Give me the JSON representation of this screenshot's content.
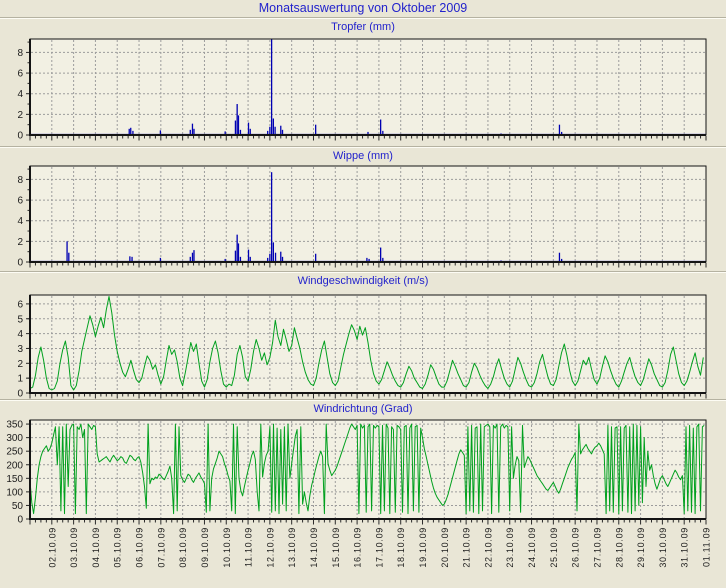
{
  "page": {
    "title": "Monatsauswertung von Oktober 2009"
  },
  "colors": {
    "background": "#e9e6d6",
    "plot_background": "#f2f0e3",
    "grid": "#9c9c9c",
    "frame": "#141414",
    "tick": "#2a2a2a",
    "title_text": "#2222cc",
    "rain_series": "#0000b2",
    "wind_series": "#00a01e"
  },
  "x_axis": {
    "start_day": "01.10.09",
    "days": 31,
    "minor_tick_hours": 6,
    "labels": [
      "02.10.09",
      "03.10.09",
      "04.10.09",
      "05.10.09",
      "06.10.09",
      "07.10.09",
      "08.10.09",
      "09.10.09",
      "10.10.09",
      "11.10.09",
      "12.10.09",
      "13.10.09",
      "14.10.09",
      "15.10.09",
      "16.10.09",
      "17.10.09",
      "18.10.09",
      "19.10.09",
      "20.10.09",
      "21.10.09",
      "22.10.09",
      "23.10.09",
      "24.10.09",
      "25.10.09",
      "26.10.09",
      "27.10.09",
      "28.10.09",
      "29.10.09",
      "30.10.09",
      "31.10.09",
      "01.11.09"
    ]
  },
  "chart_data": [
    {
      "type": "bar",
      "mark": "impulse",
      "title": "Tropfer (mm)",
      "ylabel": "mm",
      "color": "#0000b2",
      "ymax": 9.3,
      "yticks": [
        0,
        2,
        4,
        6,
        8
      ],
      "x_unit": "days_since_01_10_09",
      "points": [
        [
          4.55,
          0.6
        ],
        [
          4.62,
          0.7
        ],
        [
          4.72,
          0.4
        ],
        [
          5.98,
          0.45
        ],
        [
          7.35,
          0.5
        ],
        [
          7.45,
          1.1
        ],
        [
          7.52,
          0.6
        ],
        [
          8.95,
          0.35
        ],
        [
          9.42,
          1.4
        ],
        [
          9.5,
          3.0
        ],
        [
          9.56,
          1.9
        ],
        [
          9.65,
          0.5
        ],
        [
          10.02,
          1.2
        ],
        [
          10.1,
          0.6
        ],
        [
          10.9,
          0.4
        ],
        [
          11.0,
          0.8
        ],
        [
          11.08,
          9.4
        ],
        [
          11.16,
          1.6
        ],
        [
          11.24,
          0.8
        ],
        [
          11.5,
          0.9
        ],
        [
          11.58,
          0.5
        ],
        [
          13.1,
          1.0
        ],
        [
          15.5,
          0.3
        ],
        [
          16.08,
          1.5
        ],
        [
          16.18,
          0.4
        ],
        [
          21.6,
          0.15
        ],
        [
          24.28,
          1.0
        ],
        [
          24.38,
          0.3
        ]
      ]
    },
    {
      "type": "bar",
      "mark": "impulse",
      "title": "Wippe (mm)",
      "ylabel": "mm",
      "color": "#0000b2",
      "ymax": 9.3,
      "yticks": [
        0,
        2,
        4,
        6,
        8
      ],
      "x_unit": "days_since_01_10_09",
      "points": [
        [
          1.7,
          2.0
        ],
        [
          1.78,
          0.9
        ],
        [
          4.58,
          0.55
        ],
        [
          4.68,
          0.5
        ],
        [
          5.98,
          0.4
        ],
        [
          7.35,
          0.5
        ],
        [
          7.45,
          0.9
        ],
        [
          7.52,
          1.15
        ],
        [
          8.95,
          0.3
        ],
        [
          9.42,
          1.1
        ],
        [
          9.5,
          2.65
        ],
        [
          9.56,
          1.8
        ],
        [
          9.65,
          0.5
        ],
        [
          10.02,
          1.2
        ],
        [
          10.1,
          0.5
        ],
        [
          10.9,
          0.4
        ],
        [
          11.0,
          0.8
        ],
        [
          11.08,
          8.7
        ],
        [
          11.16,
          1.9
        ],
        [
          11.26,
          0.9
        ],
        [
          11.5,
          1.0
        ],
        [
          11.58,
          0.5
        ],
        [
          13.1,
          0.8
        ],
        [
          15.45,
          0.4
        ],
        [
          15.55,
          0.3
        ],
        [
          16.08,
          1.4
        ],
        [
          16.18,
          0.4
        ],
        [
          21.6,
          0.15
        ],
        [
          24.28,
          0.9
        ],
        [
          24.38,
          0.3
        ]
      ]
    },
    {
      "type": "line",
      "title": "Windgeschwindigkeit (m/s)",
      "ylabel": "m/s",
      "color": "#00a01e",
      "ymax": 6.6,
      "yticks": [
        0,
        1,
        2,
        3,
        4,
        5,
        6
      ],
      "samples_per_day": 8,
      "values": [
        0.3,
        0.4,
        1.2,
        2.4,
        3.1,
        2.2,
        1.0,
        0.3,
        0.2,
        0.3,
        0.8,
        2.0,
        2.9,
        3.5,
        2.4,
        0.5,
        0.2,
        0.5,
        1.5,
        2.8,
        3.6,
        4.4,
        5.2,
        4.6,
        3.8,
        4.5,
        5.1,
        4.4,
        5.6,
        6.5,
        5.4,
        3.9,
        2.8,
        2.0,
        1.4,
        1.1,
        1.6,
        2.2,
        1.5,
        0.9,
        0.7,
        1.0,
        1.8,
        2.5,
        2.2,
        1.6,
        1.9,
        1.2,
        0.6,
        1.1,
        2.2,
        3.2,
        2.6,
        2.9,
        2.1,
        1.0,
        0.5,
        1.4,
        2.4,
        3.4,
        2.8,
        3.3,
        2.0,
        0.8,
        0.4,
        0.9,
        2.1,
        3.0,
        3.5,
        2.7,
        1.5,
        0.6,
        0.4,
        0.6,
        0.5,
        1.2,
        2.6,
        3.2,
        2.4,
        1.1,
        0.8,
        1.6,
        2.8,
        3.6,
        3.0,
        2.2,
        2.7,
        1.9,
        2.4,
        3.4,
        4.9,
        3.8,
        3.2,
        4.3,
        3.6,
        2.8,
        3.2,
        4.4,
        3.7,
        3.0,
        2.1,
        1.4,
        0.9,
        0.6,
        0.5,
        1.0,
        2.0,
        2.9,
        3.5,
        2.4,
        1.3,
        0.7,
        0.5,
        0.8,
        1.7,
        2.6,
        3.3,
        4.0,
        4.6,
        4.2,
        3.6,
        4.5,
        3.9,
        4.4,
        3.4,
        2.2,
        1.3,
        0.8,
        0.6,
        0.9,
        1.5,
        2.1,
        1.7,
        1.2,
        0.8,
        0.5,
        0.4,
        0.7,
        1.3,
        1.8,
        1.5,
        1.0,
        0.7,
        0.4,
        0.3,
        0.6,
        1.2,
        1.9,
        1.6,
        1.1,
        0.6,
        0.4,
        0.4,
        0.8,
        1.5,
        2.2,
        1.8,
        1.3,
        0.9,
        0.5,
        0.4,
        0.7,
        1.4,
        2.0,
        1.7,
        1.2,
        0.8,
        0.5,
        0.3,
        0.6,
        1.1,
        1.8,
        2.3,
        1.6,
        1.0,
        0.6,
        0.4,
        0.8,
        1.6,
        2.4,
        2.0,
        1.4,
        0.9,
        0.5,
        0.4,
        0.7,
        1.3,
        2.1,
        2.6,
        1.8,
        1.1,
        0.6,
        0.5,
        0.9,
        1.8,
        2.7,
        3.3,
        2.5,
        1.5,
        0.8,
        0.5,
        0.8,
        1.5,
        2.2,
        1.9,
        2.4,
        1.6,
        0.9,
        0.6,
        1.0,
        1.8,
        2.5,
        2.1,
        1.5,
        1.0,
        0.6,
        0.4,
        0.8,
        1.4,
        2.0,
        2.4,
        1.7,
        1.1,
        0.7,
        0.5,
        0.9,
        1.6,
        2.3,
        1.9,
        1.3,
        0.9,
        0.5,
        0.4,
        0.7,
        1.5,
        2.6,
        3.1,
        2.2,
        1.3,
        0.7,
        0.5,
        0.8,
        1.4,
        2.1,
        2.7,
        1.8,
        1.2,
        2.4
      ]
    },
    {
      "type": "line",
      "title": "Windrichtung (Grad)",
      "ylabel": "Grad",
      "color": "#00a01e",
      "ymax": 365,
      "yticks": [
        0,
        50,
        100,
        150,
        200,
        250,
        300,
        350
      ],
      "samples_per_day": 12,
      "values": [
        140,
        60,
        20,
        80,
        150,
        200,
        230,
        250,
        260,
        270,
        250,
        260,
        280,
        310,
        340,
        200,
        340,
        30,
        340,
        20,
        350,
        120,
        330,
        345,
        350,
        20,
        340,
        330,
        350,
        300,
        330,
        20,
        350,
        340,
        330,
        345,
        340,
        240,
        210,
        215,
        220,
        225,
        230,
        220,
        210,
        225,
        235,
        225,
        215,
        220,
        230,
        225,
        210,
        205,
        220,
        235,
        230,
        220,
        215,
        225,
        230,
        210,
        170,
        120,
        40,
        350,
        130,
        150,
        145,
        155,
        150,
        165,
        160,
        150,
        145,
        160,
        175,
        195,
        150,
        20,
        350,
        30,
        340,
        160,
        145,
        135,
        150,
        165,
        160,
        145,
        135,
        150,
        160,
        170,
        155,
        145,
        130,
        25,
        350,
        30,
        150,
        185,
        205,
        225,
        250,
        240,
        230,
        205,
        185,
        160,
        140,
        30,
        350,
        20,
        340,
        150,
        105,
        85,
        120,
        150,
        180,
        205,
        235,
        250,
        220,
        100,
        30,
        350,
        155,
        205,
        235,
        250,
        340,
        25,
        350,
        30,
        335,
        20,
        330,
        55,
        340,
        30,
        350,
        150,
        205,
        255,
        305,
        330,
        20,
        340,
        55,
        100,
        60,
        30,
        85,
        125,
        150,
        180,
        205,
        230,
        250,
        230,
        20,
        350,
        205,
        180,
        160,
        170,
        180,
        195,
        215,
        235,
        255,
        275,
        295,
        315,
        335,
        350,
        340,
        330,
        345,
        20,
        350,
        335,
        345,
        25,
        340,
        350,
        30,
        345,
        335,
        345,
        340,
        20,
        345,
        30,
        350,
        335,
        20,
        340,
        330,
        25,
        345,
        340,
        330,
        25,
        340,
        345,
        20,
        335,
        350,
        30,
        340,
        345,
        25,
        335,
        300,
        260,
        230,
        200,
        170,
        140,
        115,
        95,
        80,
        70,
        60,
        50,
        55,
        70,
        90,
        115,
        140,
        165,
        190,
        215,
        240,
        255,
        245,
        235,
        20,
        340,
        30,
        345,
        25,
        335,
        340,
        20,
        350,
        30,
        340,
        345,
        350,
        340,
        20,
        345,
        335,
        350,
        25,
        340,
        350,
        335,
        345,
        340,
        30,
        340,
        150,
        200,
        230,
        215,
        25,
        345,
        190,
        210,
        230,
        220,
        205,
        190,
        175,
        160,
        150,
        140,
        130,
        120,
        110,
        105,
        115,
        125,
        135,
        120,
        105,
        95,
        110,
        130,
        150,
        170,
        190,
        205,
        220,
        230,
        245,
        30,
        350,
        240,
        255,
        265,
        275,
        260,
        250,
        240,
        255,
        265,
        270,
        280,
        270,
        255,
        240,
        20,
        345,
        30,
        340,
        25,
        335,
        340,
        20,
        340,
        30,
        335,
        345,
        25,
        340,
        20,
        350,
        30,
        345,
        50,
        340,
        60,
        300,
        120,
        250,
        180,
        200,
        160,
        130,
        110,
        130,
        150,
        160,
        145,
        130,
        120,
        135,
        150,
        165,
        180,
        170,
        155,
        145,
        160,
        20,
        340,
        30,
        345,
        25,
        335,
        20,
        340,
        350,
        30,
        340,
        345
      ]
    }
  ]
}
